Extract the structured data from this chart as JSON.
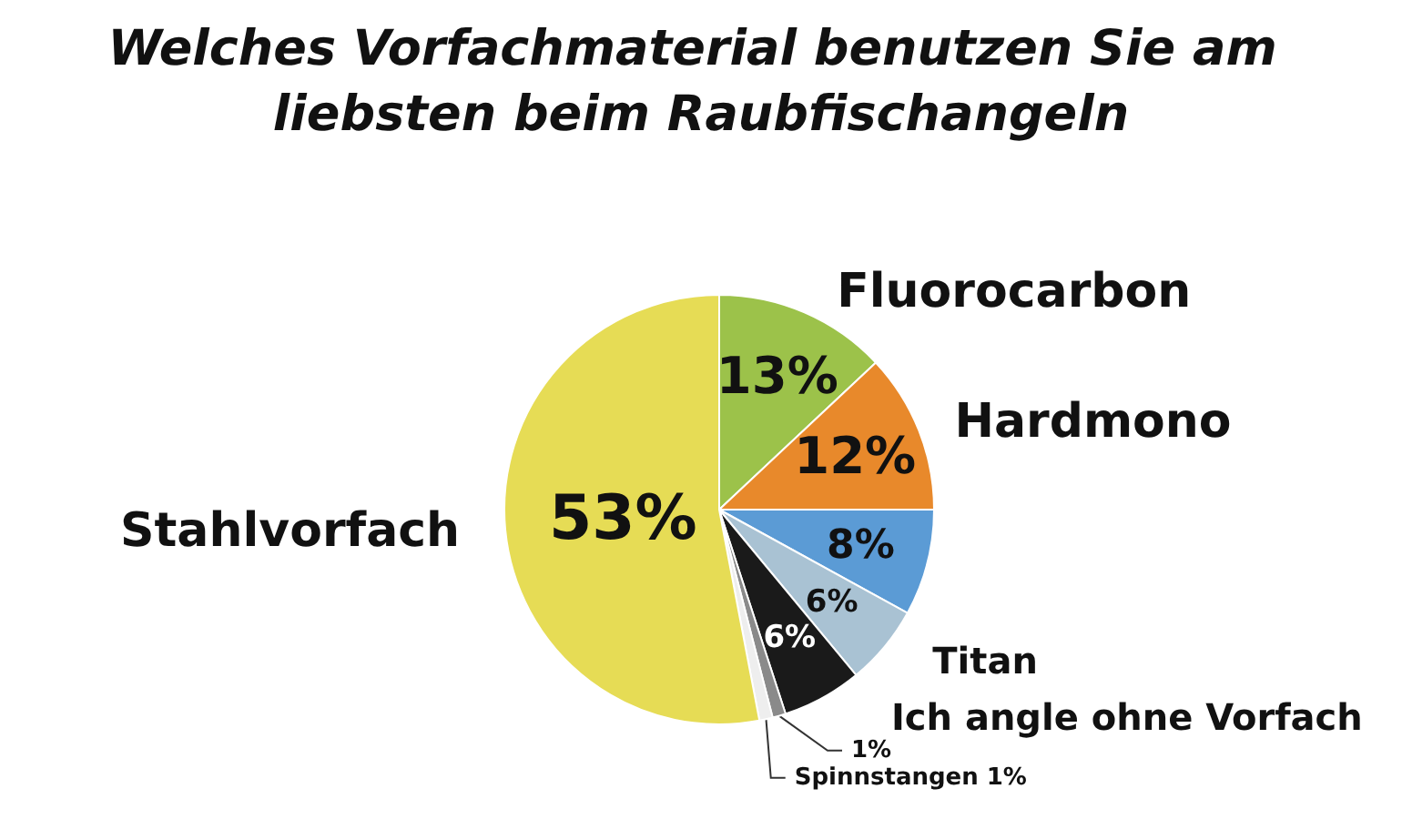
{
  "chart_data": {
    "type": "pie",
    "title": "Welches Vorfachmaterial benutzen Sie am liebsten beim Raubfischangeln",
    "categories": [
      "Fluorocarbon",
      "Hardmono",
      null,
      "Titan",
      "Ich angle ohne Vorfach",
      null,
      "Spinnstangen",
      "Stahlvorfach"
    ],
    "values": [
      13,
      12,
      8,
      6,
      6,
      1,
      1,
      53
    ],
    "colors": [
      "#9cc24a",
      "#e8892b",
      "#5b9bd5",
      "#a9c2d3",
      "#1a1a1a",
      "#8a8a8a",
      "#eeeeee",
      "#e6dc55"
    ],
    "value_labels": [
      "13%",
      "12%",
      "8%",
      "6%",
      "6%",
      "1%",
      "1%",
      "53%"
    ]
  }
}
